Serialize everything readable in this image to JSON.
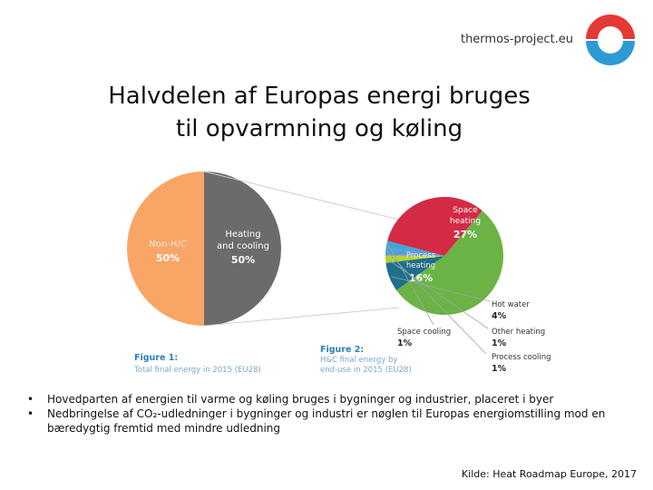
{
  "header": {
    "site": "thermos-project.eu",
    "title_line1": "Halvdelen af Europas energi bruges",
    "title_line2": "til opvarmning og køling"
  },
  "logo": {
    "colors": {
      "red": "#e53935",
      "blue": "#2d9ad6"
    },
    "icon": "thermos-logo-icon"
  },
  "chart_data": [
    {
      "type": "pie",
      "title": "Figure 1:",
      "subtitle": "Total final energy in 2015 (EU28)",
      "slices": [
        {
          "label": "Non-H/C",
          "value": 50,
          "value_label": "50%",
          "color": "#6b6b6b"
        },
        {
          "label": "Heating and cooling",
          "label_lines": [
            "Heating",
            "and cooling"
          ],
          "value": 50,
          "value_label": "50%",
          "color": "#f8a566"
        }
      ]
    },
    {
      "type": "pie",
      "title": "Figure 2:",
      "subtitle": "H&C final energy by end-use in 2015 (EU28)",
      "slices": [
        {
          "label": "Space heating",
          "label_lines": [
            "Space",
            "heating"
          ],
          "value": 27,
          "value_label": "27%",
          "color": "#6ab344"
        },
        {
          "label": "Hot water",
          "value": 4,
          "value_label": "4%",
          "color": "#1d6f8c"
        },
        {
          "label": "Other heating",
          "value": 1,
          "value_label": "1%",
          "color": "#b5d334"
        },
        {
          "label": "Process cooling",
          "value": 1,
          "value_label": "1%",
          "color": "#5b9bd5"
        },
        {
          "label": "Space cooling",
          "value": 1,
          "value_label": "1%",
          "color": "#3fa7d6"
        },
        {
          "label": "Process heating",
          "label_lines": [
            "Process",
            "heating"
          ],
          "value": 16,
          "value_label": "16%",
          "color": "#d42a45"
        }
      ]
    }
  ],
  "bullets": [
    "Hovedparten af energien til varme og køling bruges i bygninger og industrier, placeret i byer",
    "Nedbringelse af CO₂-udledninger i bygninger og industri er nøglen til Europas energiomstilling mod en bæredygtig fremtid med mindre udledning"
  ],
  "source": "Kilde: Heat Roadmap Europe, 2017"
}
